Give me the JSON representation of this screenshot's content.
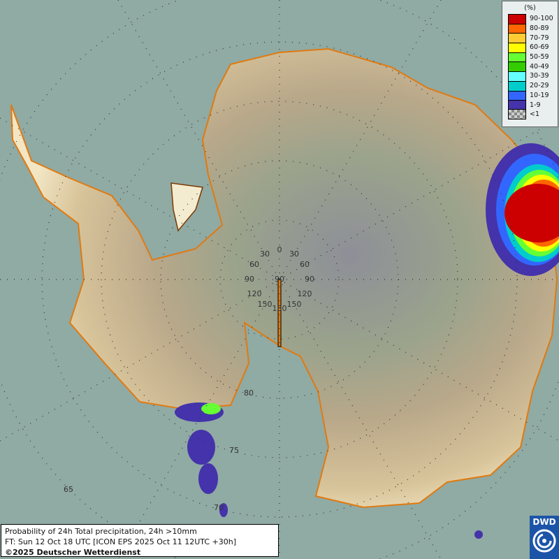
{
  "legend": {
    "unit": "(%)",
    "items": [
      {
        "label": "90-100",
        "color": "#cc0000"
      },
      {
        "label": "80-89",
        "color": "#ff6600"
      },
      {
        "label": "70-79",
        "color": "#ffcc33"
      },
      {
        "label": "60-69",
        "color": "#ffff00"
      },
      {
        "label": "50-59",
        "color": "#66ff33"
      },
      {
        "label": "40-49",
        "color": "#33cc00"
      },
      {
        "label": "30-39",
        "color": "#66ffff"
      },
      {
        "label": "20-29",
        "color": "#00cccc"
      },
      {
        "label": "10-19",
        "color": "#3366ff"
      },
      {
        "label": "1-9",
        "color": "#4433aa"
      },
      {
        "label": "<1",
        "color": "checker"
      }
    ]
  },
  "info": {
    "title": "Probability of 24h Total precipitation, 24h >10mm",
    "forecast": "FT: Sun 12 Oct 18 UTC [ICON EPS 2025 Oct 11 12UTC +30h]",
    "copyright": "©2025 Deutscher Wetterdienst"
  },
  "logo": {
    "text": "DWD"
  },
  "grid": {
    "longitude_labels": [
      "0",
      "30",
      "30",
      "60",
      "60",
      "90",
      "90",
      "90",
      "120",
      "120",
      "150",
      "150",
      "180"
    ],
    "latitude_labels": [
      "80",
      "75",
      "70",
      "65"
    ]
  }
}
